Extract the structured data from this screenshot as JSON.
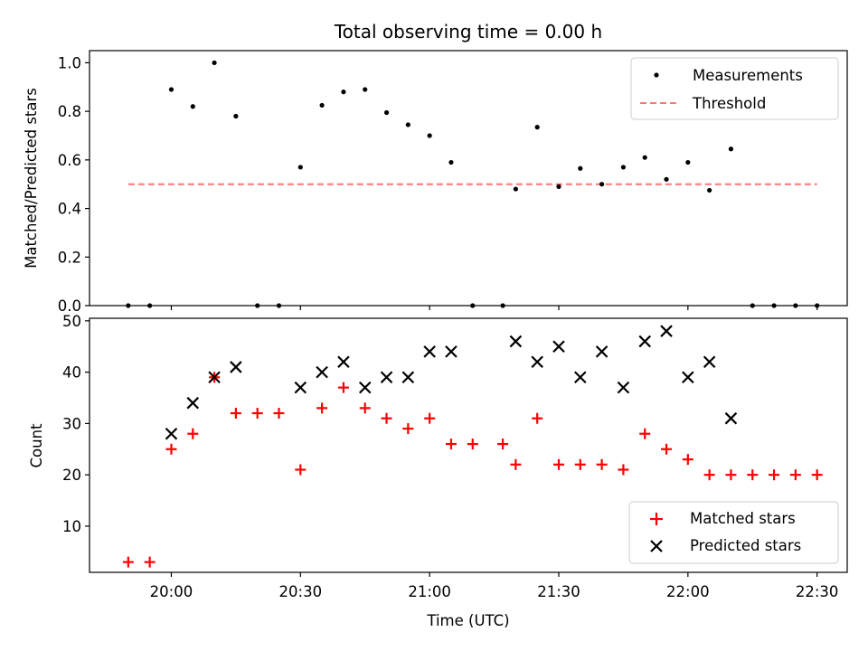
{
  "chart_data": [
    {
      "type": "scatter",
      "title": "Total observing time = 0.00 h",
      "xlabel": "",
      "ylabel": "Matched/Predicted stars",
      "ylim": [
        0,
        1.05
      ],
      "yticks": [
        "0.0",
        "0.2",
        "0.4",
        "0.6",
        "0.8",
        "1.0"
      ],
      "ytick_values": [
        0,
        0.2,
        0.4,
        0.6,
        0.8,
        1.0
      ],
      "legend_position": "top-right",
      "series": [
        {
          "name": "Measurements",
          "marker": "dot",
          "color": "#000000",
          "x": [
            "19:50",
            "19:55",
            "20:00",
            "20:05",
            "20:10",
            "20:15",
            "20:20",
            "20:25",
            "20:30",
            "20:35",
            "20:40",
            "20:45",
            "20:50",
            "20:55",
            "21:00",
            "21:05",
            "21:10",
            "21:17",
            "21:20",
            "21:25",
            "21:30",
            "21:35",
            "21:40",
            "21:45",
            "21:50",
            "21:55",
            "22:00",
            "22:05",
            "22:10",
            "22:15",
            "22:20",
            "22:25",
            "22:30"
          ],
          "values": [
            0,
            0,
            0.89,
            0.82,
            1.0,
            0.78,
            0,
            0,
            0.57,
            0.825,
            0.88,
            0.89,
            0.795,
            0.745,
            0.7,
            0.59,
            0,
            0,
            0.48,
            0.735,
            0.49,
            0.565,
            0.5,
            0.57,
            0.61,
            0.52,
            0.59,
            0.475,
            0.645,
            0,
            0,
            0,
            0
          ]
        },
        {
          "name": "Threshold",
          "style": "dashed",
          "color": "#ff7777",
          "x": [
            "19:50",
            "22:30"
          ],
          "values": [
            0.5,
            0.5
          ]
        }
      ]
    },
    {
      "type": "scatter",
      "title": "",
      "xlabel": "Time (UTC)",
      "ylabel": "Count",
      "ylim": [
        1,
        50.5
      ],
      "yticks": [
        "10",
        "20",
        "30",
        "40",
        "50"
      ],
      "ytick_values": [
        10,
        20,
        30,
        40,
        50
      ],
      "xlim": [
        "19:41",
        "22:37"
      ],
      "xticks": [
        "20:00",
        "20:30",
        "21:00",
        "21:30",
        "22:00",
        "22:30"
      ],
      "legend_position": "bottom-right",
      "series": [
        {
          "name": "Matched stars",
          "marker": "plus",
          "color": "#ff0000",
          "x": [
            "19:50",
            "19:55",
            "20:00",
            "20:05",
            "20:10",
            "20:15",
            "20:20",
            "20:25",
            "20:30",
            "20:35",
            "20:40",
            "20:45",
            "20:50",
            "20:55",
            "21:00",
            "21:05",
            "21:10",
            "21:17",
            "21:20",
            "21:25",
            "21:30",
            "21:35",
            "21:40",
            "21:45",
            "21:50",
            "21:55",
            "22:00",
            "22:05",
            "22:10",
            "22:15",
            "22:20",
            "22:25",
            "22:30"
          ],
          "values": [
            3,
            3,
            25,
            28,
            39,
            32,
            32,
            32,
            21,
            33,
            37,
            33,
            31,
            29,
            31,
            26,
            26,
            26,
            22,
            31,
            22,
            22,
            22,
            21,
            28,
            25,
            23,
            20,
            20,
            20,
            20,
            20,
            20
          ]
        },
        {
          "name": "Predicted stars",
          "marker": "x",
          "color": "#000000",
          "x": [
            "20:00",
            "20:05",
            "20:10",
            "20:15",
            "20:30",
            "20:35",
            "20:40",
            "20:45",
            "20:50",
            "20:55",
            "21:00",
            "21:05",
            "21:20",
            "21:25",
            "21:30",
            "21:35",
            "21:40",
            "21:45",
            "21:50",
            "21:55",
            "22:00",
            "22:05",
            "22:10"
          ],
          "values": [
            28,
            34,
            39,
            41,
            37,
            40,
            42,
            37,
            39,
            39,
            44,
            44,
            46,
            42,
            45,
            39,
            44,
            37,
            46,
            48,
            39,
            42,
            31
          ]
        }
      ]
    }
  ]
}
